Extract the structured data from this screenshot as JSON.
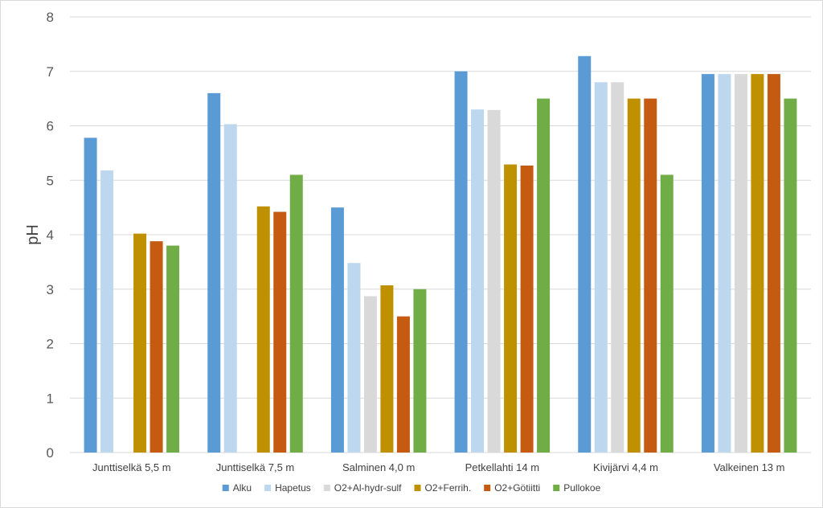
{
  "chart_data": {
    "type": "bar",
    "title": "",
    "xlabel": "",
    "ylabel": "pH",
    "ylim": [
      0,
      8
    ],
    "yticks": [
      0,
      1,
      2,
      3,
      4,
      5,
      6,
      7,
      8
    ],
    "grid": true,
    "legend_position": "bottom",
    "categories": [
      "Junttiselkä 5,5 m",
      "Junttiselkä 7,5 m",
      "Salminen 4,0 m",
      "Petkellahti 14 m",
      "Kivijärvi 4,4 m",
      "Valkeinen 13 m"
    ],
    "series": [
      {
        "name": "Alku",
        "color": "#5b9bd5",
        "values": [
          5.78,
          6.6,
          4.5,
          7.0,
          7.28,
          6.95
        ]
      },
      {
        "name": "Hapetus",
        "color": "#bdd7ee",
        "values": [
          5.18,
          6.03,
          3.48,
          6.3,
          6.8,
          6.95
        ]
      },
      {
        "name": "O2+Al-hydr-sulf",
        "color": "#d9d9d9",
        "values": [
          null,
          null,
          2.87,
          6.29,
          6.8,
          6.95
        ]
      },
      {
        "name": "O2+Ferrih.",
        "color": "#bf9000",
        "values": [
          4.02,
          4.52,
          3.07,
          5.29,
          6.5,
          6.95
        ]
      },
      {
        "name": "O2+Götiitti",
        "color": "#c55a11",
        "values": [
          3.88,
          4.42,
          2.5,
          5.27,
          6.5,
          6.95
        ]
      },
      {
        "name": "Pullokoe",
        "color": "#70ad47",
        "values": [
          3.8,
          5.1,
          3.0,
          6.5,
          5.1,
          6.5
        ]
      }
    ]
  }
}
